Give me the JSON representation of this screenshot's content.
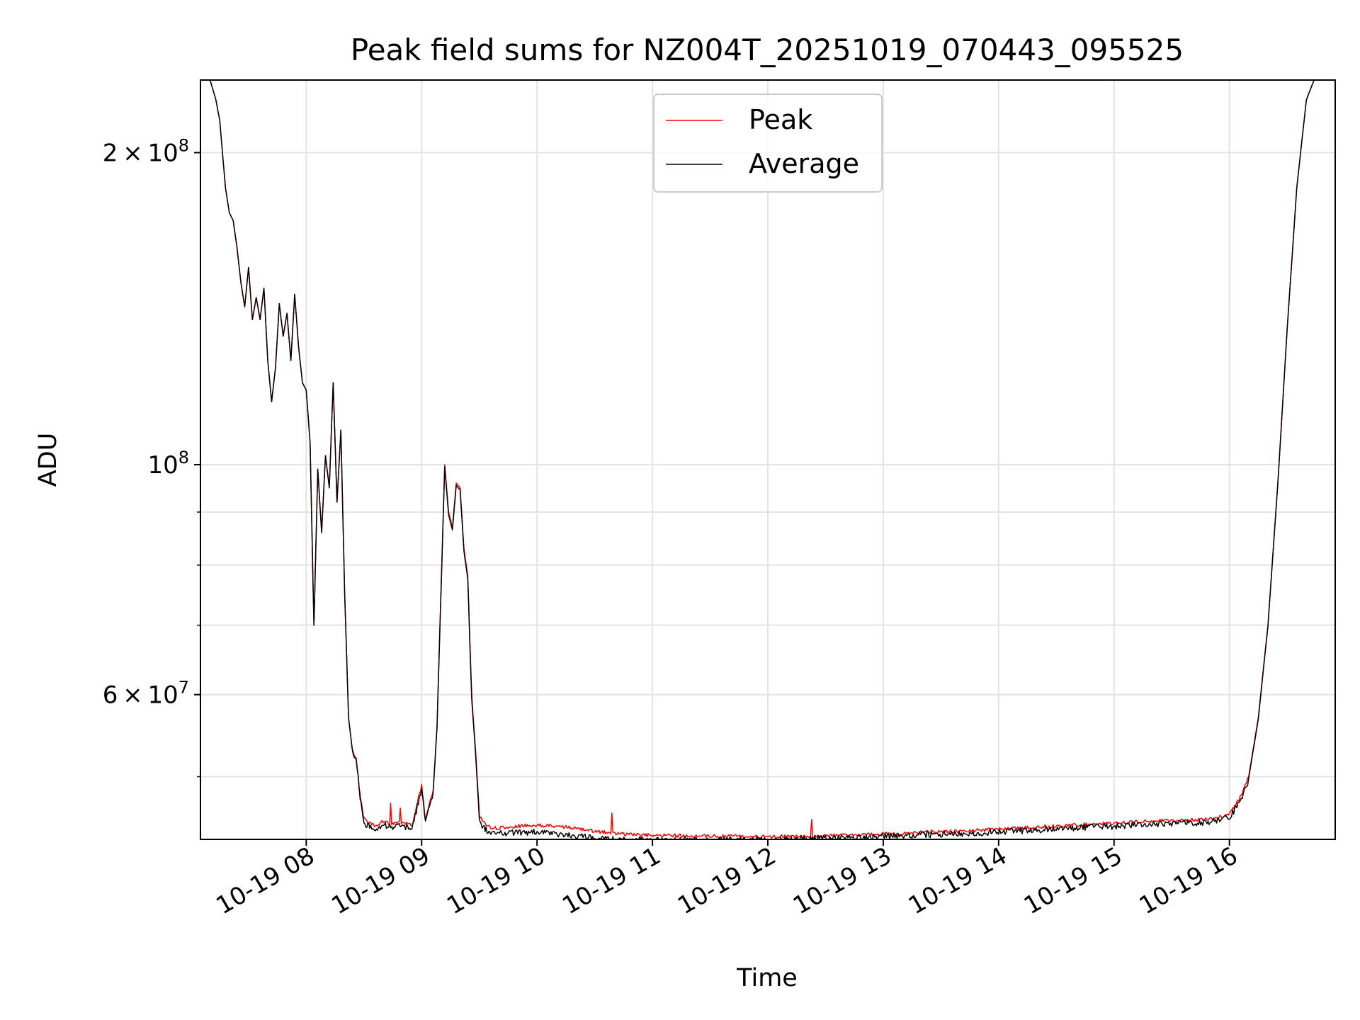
{
  "chart_data": {
    "type": "line",
    "title": "Peak field sums for NZ004T_20251019_070443_095525",
    "xlabel": "Time",
    "ylabel": "ADU",
    "y_scale": "log",
    "grid": true,
    "legend_position": "top-center",
    "x_range": [
      "2025-10-19 07:05",
      "2025-10-19 16:55"
    ],
    "y_range": [
      43500000,
      235000000
    ],
    "x_tick_labels": [
      "10-19 08",
      "10-19 09",
      "10-19 10",
      "10-19 11",
      "10-19 12",
      "10-19 13",
      "10-19 14",
      "10-19 15",
      "10-19 16"
    ],
    "x_tick_values": [
      "2025-10-19 08:00",
      "2025-10-19 09:00",
      "2025-10-19 10:00",
      "2025-10-19 11:00",
      "2025-10-19 12:00",
      "2025-10-19 13:00",
      "2025-10-19 14:00",
      "2025-10-19 15:00",
      "2025-10-19 16:00"
    ],
    "y_major_ticks": [
      {
        "value": 60000000,
        "mantissa": "6",
        "exponent": "7"
      },
      {
        "value": 100000000,
        "mantissa": "",
        "exponent": "8"
      },
      {
        "value": 200000000,
        "mantissa": "2",
        "exponent": "8"
      }
    ],
    "y_minor_ticks": [
      50000000,
      70000000,
      80000000,
      90000000
    ],
    "series": [
      {
        "name": "Peak",
        "color": "#ff0000",
        "x": [
          "2025-10-19 07:05",
          "2025-10-19 07:10",
          "2025-10-19 07:13",
          "2025-10-19 07:15",
          "2025-10-19 07:18",
          "2025-10-19 07:20",
          "2025-10-19 07:22",
          "2025-10-19 07:24",
          "2025-10-19 07:26",
          "2025-10-19 07:28",
          "2025-10-19 07:30",
          "2025-10-19 07:32",
          "2025-10-19 07:34",
          "2025-10-19 07:36",
          "2025-10-19 07:38",
          "2025-10-19 07:40",
          "2025-10-19 07:42",
          "2025-10-19 07:44",
          "2025-10-19 07:46",
          "2025-10-19 07:48",
          "2025-10-19 07:50",
          "2025-10-19 07:52",
          "2025-10-19 07:54",
          "2025-10-19 07:56",
          "2025-10-19 07:58",
          "2025-10-19 08:00",
          "2025-10-19 08:02",
          "2025-10-19 08:04",
          "2025-10-19 08:06",
          "2025-10-19 08:08",
          "2025-10-19 08:10",
          "2025-10-19 08:12",
          "2025-10-19 08:14",
          "2025-10-19 08:16",
          "2025-10-19 08:18",
          "2025-10-19 08:20",
          "2025-10-19 08:22",
          "2025-10-19 08:24",
          "2025-10-19 08:26",
          "2025-10-19 08:28",
          "2025-10-19 08:30",
          "2025-10-19 08:32",
          "2025-10-19 08:34",
          "2025-10-19 08:36",
          "2025-10-19 08:38",
          "2025-10-19 08:40",
          "2025-10-19 08:45",
          "2025-10-19 08:50",
          "2025-10-19 08:55",
          "2025-10-19 09:00",
          "2025-10-19 09:02",
          "2025-10-19 09:04",
          "2025-10-19 09:06",
          "2025-10-19 09:08",
          "2025-10-19 09:10",
          "2025-10-19 09:12",
          "2025-10-19 09:14",
          "2025-10-19 09:16",
          "2025-10-19 09:18",
          "2025-10-19 09:20",
          "2025-10-19 09:22",
          "2025-10-19 09:24",
          "2025-10-19 09:26",
          "2025-10-19 09:28",
          "2025-10-19 09:30",
          "2025-10-19 09:32",
          "2025-10-19 09:34",
          "2025-10-19 09:36",
          "2025-10-19 09:40",
          "2025-10-19 09:50",
          "2025-10-19 10:00",
          "2025-10-19 10:10",
          "2025-10-19 10:20",
          "2025-10-19 10:30",
          "2025-10-19 10:45",
          "2025-10-19 11:00",
          "2025-10-19 11:20",
          "2025-10-19 11:40",
          "2025-10-19 12:00",
          "2025-10-19 12:20",
          "2025-10-19 12:40",
          "2025-10-19 13:00",
          "2025-10-19 13:20",
          "2025-10-19 13:40",
          "2025-10-19 14:00",
          "2025-10-19 14:20",
          "2025-10-19 14:40",
          "2025-10-19 15:00",
          "2025-10-19 15:20",
          "2025-10-19 15:40",
          "2025-10-19 15:50",
          "2025-10-19 16:00",
          "2025-10-19 16:05",
          "2025-10-19 16:10",
          "2025-10-19 16:15",
          "2025-10-19 16:20",
          "2025-10-19 16:25",
          "2025-10-19 16:30",
          "2025-10-19 16:35",
          "2025-10-19 16:40",
          "2025-10-19 16:44",
          "2025-10-19 16:48",
          "2025-10-19 16:55"
        ],
        "y": [
          235000000,
          235000000,
          225000000,
          215000000,
          185000000,
          175000000,
          172000000,
          162000000,
          150000000,
          142000000,
          155000000,
          138000000,
          145000000,
          138000000,
          148000000,
          126000000,
          115000000,
          124000000,
          143000000,
          133000000,
          140000000,
          126000000,
          146000000,
          130000000,
          120000000,
          118000000,
          105000000,
          70000000,
          99000000,
          86000000,
          102000000,
          95000000,
          120000000,
          92000000,
          108000000,
          75000000,
          57000000,
          53000000,
          52000000,
          48000000,
          45500000,
          45200000,
          45000000,
          44800000,
          45000000,
          45300000,
          45000000,
          45200000,
          44900000,
          49000000,
          45500000,
          47000000,
          48500000,
          56000000,
          75000000,
          100000000,
          90000000,
          87000000,
          96000000,
          95000000,
          83000000,
          78000000,
          60000000,
          53000000,
          46000000,
          45200000,
          44800000,
          44700000,
          44600000,
          44800000,
          44900000,
          44800000,
          44600000,
          44300000,
          44000000,
          43900000,
          43850000,
          43800000,
          43750000,
          43800000,
          43900000,
          44000000,
          44200000,
          44300000,
          44500000,
          44700000,
          44900000,
          45100000,
          45300000,
          45400000,
          45500000,
          46000000,
          47500000,
          50000000,
          57000000,
          70000000,
          95000000,
          135000000,
          185000000,
          225000000,
          235000000,
          235000000,
          235000000
        ]
      },
      {
        "name": "Average",
        "color": "#000000",
        "x": [
          "2025-10-19 07:05",
          "2025-10-19 07:10",
          "2025-10-19 07:13",
          "2025-10-19 07:15",
          "2025-10-19 07:18",
          "2025-10-19 07:20",
          "2025-10-19 07:22",
          "2025-10-19 07:24",
          "2025-10-19 07:26",
          "2025-10-19 07:28",
          "2025-10-19 07:30",
          "2025-10-19 07:32",
          "2025-10-19 07:34",
          "2025-10-19 07:36",
          "2025-10-19 07:38",
          "2025-10-19 07:40",
          "2025-10-19 07:42",
          "2025-10-19 07:44",
          "2025-10-19 07:46",
          "2025-10-19 07:48",
          "2025-10-19 07:50",
          "2025-10-19 07:52",
          "2025-10-19 07:54",
          "2025-10-19 07:56",
          "2025-10-19 07:58",
          "2025-10-19 08:00",
          "2025-10-19 08:02",
          "2025-10-19 08:04",
          "2025-10-19 08:06",
          "2025-10-19 08:08",
          "2025-10-19 08:10",
          "2025-10-19 08:12",
          "2025-10-19 08:14",
          "2025-10-19 08:16",
          "2025-10-19 08:18",
          "2025-10-19 08:20",
          "2025-10-19 08:22",
          "2025-10-19 08:24",
          "2025-10-19 08:26",
          "2025-10-19 08:28",
          "2025-10-19 08:30",
          "2025-10-19 08:32",
          "2025-10-19 08:34",
          "2025-10-19 08:36",
          "2025-10-19 08:38",
          "2025-10-19 08:40",
          "2025-10-19 08:45",
          "2025-10-19 08:50",
          "2025-10-19 08:55",
          "2025-10-19 09:00",
          "2025-10-19 09:02",
          "2025-10-19 09:04",
          "2025-10-19 09:06",
          "2025-10-19 09:08",
          "2025-10-19 09:10",
          "2025-10-19 09:12",
          "2025-10-19 09:14",
          "2025-10-19 09:16",
          "2025-10-19 09:18",
          "2025-10-19 09:20",
          "2025-10-19 09:22",
          "2025-10-19 09:24",
          "2025-10-19 09:26",
          "2025-10-19 09:28",
          "2025-10-19 09:30",
          "2025-10-19 09:32",
          "2025-10-19 09:34",
          "2025-10-19 09:36",
          "2025-10-19 09:40",
          "2025-10-19 09:50",
          "2025-10-19 10:00",
          "2025-10-19 10:10",
          "2025-10-19 10:20",
          "2025-10-19 10:30",
          "2025-10-19 10:45",
          "2025-10-19 11:00",
          "2025-10-19 11:20",
          "2025-10-19 11:40",
          "2025-10-19 12:00",
          "2025-10-19 12:20",
          "2025-10-19 12:40",
          "2025-10-19 13:00",
          "2025-10-19 13:20",
          "2025-10-19 13:40",
          "2025-10-19 14:00",
          "2025-10-19 14:20",
          "2025-10-19 14:40",
          "2025-10-19 15:00",
          "2025-10-19 15:20",
          "2025-10-19 15:40",
          "2025-10-19 15:50",
          "2025-10-19 16:00",
          "2025-10-19 16:05",
          "2025-10-19 16:10",
          "2025-10-19 16:15",
          "2025-10-19 16:20",
          "2025-10-19 16:25",
          "2025-10-19 16:30",
          "2025-10-19 16:35",
          "2025-10-19 16:40",
          "2025-10-19 16:44",
          "2025-10-19 16:48",
          "2025-10-19 16:55"
        ],
        "y": [
          235000000,
          235000000,
          225000000,
          215000000,
          185000000,
          175000000,
          172000000,
          162000000,
          150000000,
          142000000,
          155000000,
          138000000,
          145000000,
          138000000,
          148000000,
          126000000,
          115000000,
          124000000,
          143000000,
          133000000,
          140000000,
          126000000,
          146000000,
          130000000,
          120000000,
          118000000,
          105000000,
          70000000,
          99000000,
          86000000,
          102000000,
          95000000,
          120000000,
          92000000,
          108000000,
          75000000,
          57000000,
          53000000,
          52000000,
          48000000,
          45300000,
          45000000,
          44800000,
          44600000,
          44800000,
          45100000,
          44800000,
          45000000,
          44700000,
          48800000,
          45300000,
          46800000,
          48300000,
          55800000,
          74500000,
          99500000,
          89500000,
          86500000,
          95500000,
          94500000,
          82500000,
          77500000,
          59500000,
          52800000,
          45800000,
          44800000,
          44500000,
          44300000,
          44200000,
          44300000,
          44400000,
          44200000,
          44000000,
          43800000,
          43600000,
          43600000,
          43600000,
          43600000,
          43650000,
          43700000,
          43800000,
          43900000,
          44100000,
          44200000,
          44400000,
          44550000,
          44750000,
          44950000,
          45150000,
          45250000,
          45350000,
          45850000,
          47300000,
          49800000,
          56800000,
          69800000,
          94800000,
          134800000,
          184800000,
          224800000,
          235000000,
          235000000,
          235000000
        ]
      }
    ]
  }
}
